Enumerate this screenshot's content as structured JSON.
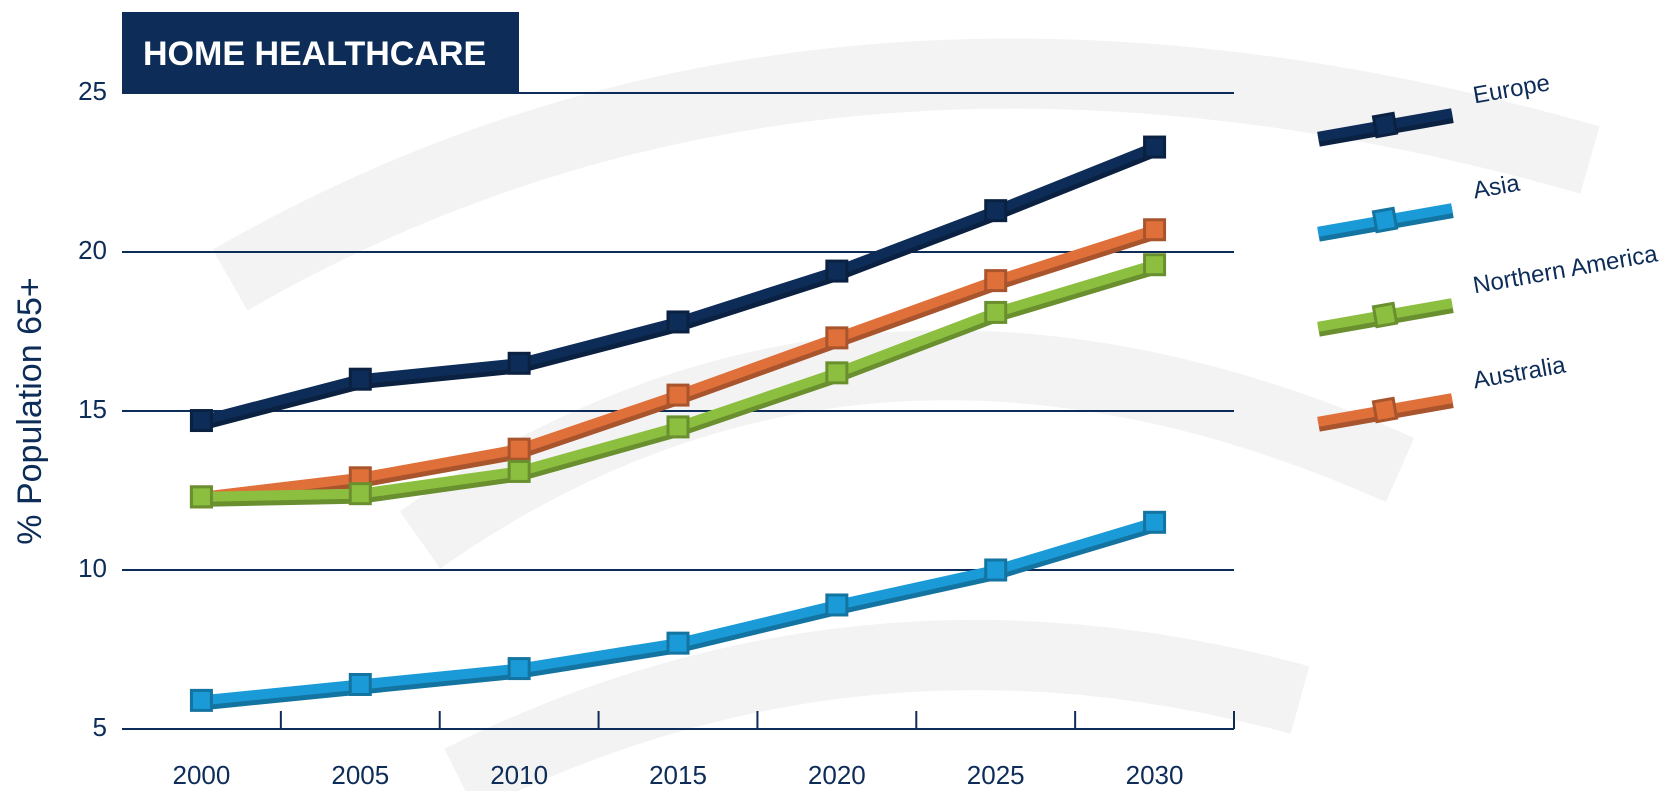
{
  "chart_data": {
    "type": "line",
    "title": "HOME HEALTHCARE",
    "y_label": "% Population 65+",
    "categories": [
      "2000",
      "2005",
      "2010",
      "2015",
      "2020",
      "2025",
      "2030"
    ],
    "ylim": [
      5,
      25
    ],
    "yticks": [
      5,
      10,
      15,
      20,
      25
    ],
    "grid": true,
    "legend": "right",
    "series": [
      {
        "name": "Europe",
        "color": "#0d2c57",
        "values": [
          14.7,
          16.0,
          16.5,
          17.8,
          19.4,
          21.3,
          23.3
        ]
      },
      {
        "name": "Asia",
        "color": "#1a9ad6",
        "values": [
          5.9,
          6.4,
          6.9,
          7.7,
          8.9,
          10.0,
          11.5
        ]
      },
      {
        "name": "Northern America",
        "color": "#8cbf3f",
        "values": [
          12.3,
          12.4,
          13.1,
          14.5,
          16.2,
          18.1,
          19.6
        ]
      },
      {
        "name": "Australia",
        "color": "#e0703a",
        "values": [
          12.3,
          12.9,
          13.8,
          15.5,
          17.3,
          19.1,
          20.7
        ]
      }
    ]
  }
}
